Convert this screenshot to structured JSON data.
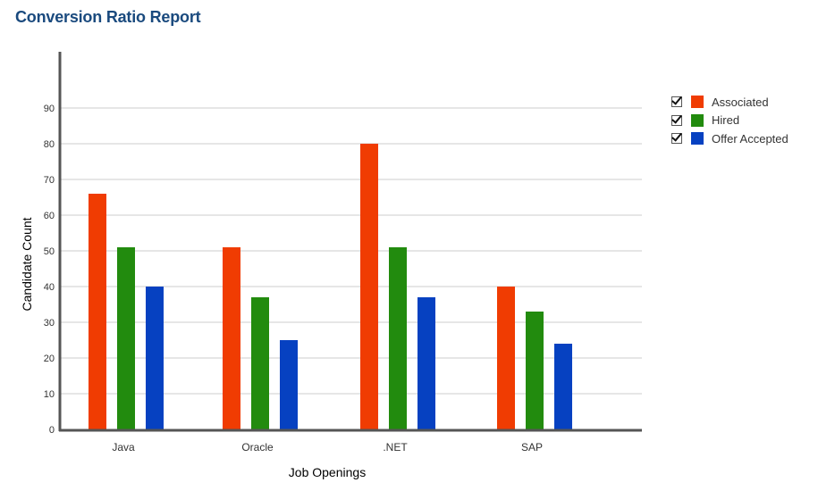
{
  "report": {
    "title": "Conversion Ratio Report"
  },
  "colors": {
    "associated": "#f03c02",
    "hired": "#228b0e",
    "offer_accepted": "#0641c1",
    "grid": "#cccccc",
    "axis": "#555555"
  },
  "legend": [
    {
      "label": "Associated",
      "color": "#f03c02",
      "checked": true
    },
    {
      "label": "Hired",
      "color": "#228b0e",
      "checked": true
    },
    {
      "label": "Offer Accepted",
      "color": "#0641c1",
      "checked": true
    }
  ],
  "chart_data": {
    "type": "bar",
    "title": "Conversion Ratio Report",
    "xlabel": "Job Openings",
    "ylabel": "Candidate Count",
    "categories": [
      "Java",
      "Oracle",
      ".NET",
      "SAP"
    ],
    "series": [
      {
        "name": "Associated",
        "color": "#f03c02",
        "values": [
          66,
          51,
          80,
          40
        ]
      },
      {
        "name": "Hired",
        "color": "#228b0e",
        "values": [
          51,
          37,
          51,
          33
        ]
      },
      {
        "name": "Offer Accepted",
        "color": "#0641c1",
        "values": [
          40,
          25,
          37,
          24
        ]
      }
    ],
    "yticks": [
      0,
      10,
      20,
      30,
      40,
      50,
      60,
      70,
      80,
      90
    ],
    "ylim": [
      0,
      105
    ],
    "grid": true,
    "legend_position": "top-right"
  }
}
